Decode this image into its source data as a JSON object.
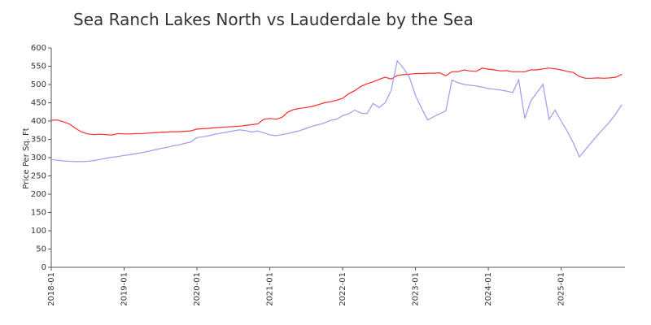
{
  "chart_data": {
    "type": "line",
    "title": "Sea Ranch Lakes North vs Lauderdale by the Sea",
    "y_label": "Price Per Sq. Ft",
    "ylim": [
      0,
      600
    ],
    "yticks": [
      0,
      50,
      100,
      150,
      200,
      250,
      300,
      350,
      400,
      450,
      500,
      550,
      600
    ],
    "categories": [
      "2018-01",
      null,
      null,
      null,
      null,
      null,
      null,
      null,
      null,
      null,
      null,
      null,
      "2019-01",
      null,
      null,
      null,
      null,
      null,
      null,
      null,
      null,
      null,
      null,
      null,
      "2020-01",
      null,
      null,
      null,
      null,
      null,
      null,
      null,
      null,
      null,
      null,
      null,
      "2021-01",
      null,
      null,
      null,
      null,
      null,
      null,
      null,
      null,
      null,
      null,
      null,
      "2022-01",
      null,
      null,
      null,
      null,
      null,
      null,
      null,
      null,
      null,
      null,
      null,
      "2023-01",
      null,
      null,
      null,
      null,
      null,
      null,
      null,
      null,
      null,
      null,
      null,
      "2024-01",
      null,
      null,
      null,
      null,
      null,
      null,
      null,
      null,
      null,
      null,
      null,
      "2025-01",
      null,
      null,
      null,
      null,
      null,
      null,
      null,
      null,
      null,
      null
    ],
    "series": [
      {
        "color": "#ff2a2a",
        "values": [
          402,
          403,
          398,
          392,
          380,
          370,
          365,
          363,
          364,
          363,
          362,
          366,
          365,
          365,
          366,
          366,
          367,
          368,
          369,
          370,
          371,
          371,
          372,
          373,
          378,
          379,
          380,
          382,
          383,
          384,
          385,
          386,
          388,
          390,
          392,
          405,
          407,
          405,
          410,
          425,
          432,
          435,
          437,
          440,
          445,
          450,
          453,
          457,
          462,
          475,
          483,
          495,
          502,
          507,
          514,
          520,
          515,
          525,
          527,
          528,
          530,
          530,
          531,
          531,
          532,
          524,
          535,
          535,
          540,
          537,
          536,
          545,
          542,
          540,
          537,
          538,
          535,
          535,
          535,
          540,
          540,
          543,
          545,
          543,
          540,
          536,
          533,
          522,
          517,
          517,
          518,
          517,
          518,
          520,
          528
        ]
      },
      {
        "color": "#9b9bee",
        "values": [
          295,
          293,
          291,
          290,
          289,
          289,
          290,
          292,
          295,
          298,
          301,
          303,
          306,
          308,
          311,
          314,
          317,
          321,
          325,
          328,
          332,
          335,
          339,
          343,
          355,
          357,
          360,
          364,
          367,
          370,
          373,
          376,
          374,
          370,
          373,
          368,
          362,
          360,
          363,
          366,
          370,
          374,
          380,
          386,
          390,
          395,
          402,
          405,
          415,
          420,
          430,
          422,
          420,
          448,
          437,
          450,
          485,
          565,
          545,
          520,
          470,
          435,
          403,
          412,
          420,
          428,
          512,
          505,
          500,
          498,
          496,
          493,
          489,
          487,
          485,
          482,
          478,
          513,
          407,
          455,
          478,
          500,
          405,
          430,
          400,
          372,
          340,
          302,
          322,
          342,
          362,
          380,
          398,
          420,
          445
        ]
      }
    ]
  }
}
